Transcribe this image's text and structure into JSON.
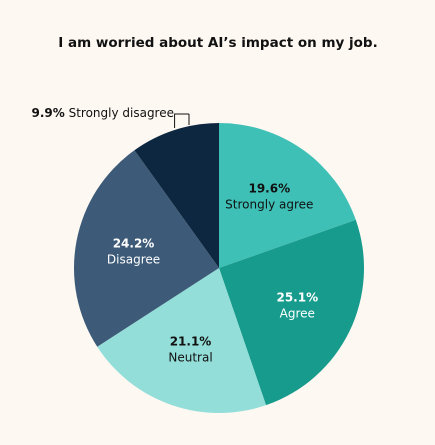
{
  "chart_data": {
    "type": "pie",
    "title": "I am worried about AI’s impact on my job.",
    "categories": [
      "Strongly agree",
      "Agree",
      "Neutral",
      "Disagree",
      "Strongly disagree"
    ],
    "values": [
      19.6,
      25.1,
      21.1,
      24.2,
      9.9
    ],
    "value_labels": [
      "19.6%",
      "25.1%",
      "21.1%",
      "24.2%",
      "9.9%"
    ],
    "colors": [
      "#3ec0b6",
      "#169b8d",
      "#94ded9",
      "#3d5b78",
      "#0e2741"
    ]
  }
}
